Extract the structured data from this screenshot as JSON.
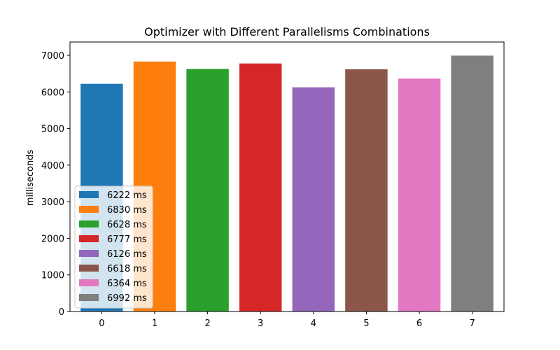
{
  "chart_data": {
    "type": "bar",
    "title": "Optimizer with Different Parallelisms Combinations",
    "xlabel": "",
    "ylabel": "milliseconds",
    "categories": [
      "0",
      "1",
      "2",
      "3",
      "4",
      "5",
      "6",
      "7"
    ],
    "values": [
      6222,
      6830,
      6628,
      6777,
      6126,
      6618,
      6364,
      6992
    ],
    "colors": [
      "#1f77b4",
      "#ff7f0e",
      "#2ca02c",
      "#d62728",
      "#9467bd",
      "#8c564b",
      "#e377c2",
      "#7f7f7f"
    ],
    "ylim": [
      0,
      7000
    ],
    "yticks": [
      0,
      1000,
      2000,
      3000,
      4000,
      5000,
      6000,
      7000
    ],
    "ytick_labels": [
      "0",
      "1000",
      "2000",
      "3000",
      "4000",
      "5000",
      "6000",
      "7000"
    ],
    "grid": false,
    "legend": {
      "placement": "lower-left",
      "entries": [
        "6222 ms",
        "6830 ms",
        "6628 ms",
        "6777 ms",
        "6126 ms",
        "6618 ms",
        "6364 ms",
        "6992 ms"
      ]
    }
  }
}
